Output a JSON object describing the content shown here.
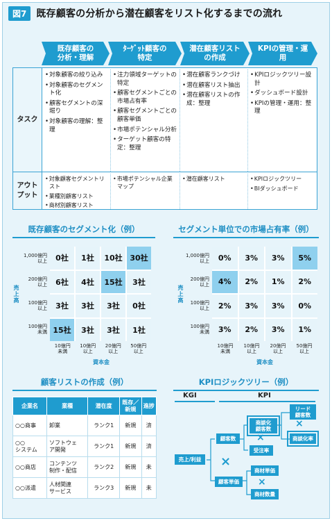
{
  "figure": {
    "badge": "図7",
    "title": "既存顧客の分析から潜在顧客をリスト化するまでの流れ"
  },
  "process": {
    "steps": [
      "既存顧客の\n分析・理解",
      "ﾀｰｹﾞｯﾄ顧客の\n特定",
      "潜在顧客リスト\nの作成",
      "KPIの管理・運用"
    ],
    "row_task": "タスク",
    "row_output": "アウト\nプット",
    "tasks": [
      [
        "対象顧客の絞り込み",
        "対象顧客のセグメント化",
        "顧客セグメントの深堀り",
        "対象顧客の理解：整理"
      ],
      [
        "注力領域ターゲットの特定",
        "顧客セグメントごとの市場占有率",
        "顧客セグメントごとの顧客単価",
        "市場ポテンシャル分析",
        "ターゲット顧客の特定：整理"
      ],
      [
        "潜在顧客ランクづけ",
        "潜在顧客リスト抽出",
        "潜在顧客リストの作成：整理"
      ],
      [
        "KPIロジックツリー設計",
        "ダッシュボード設計",
        "KPIの管理・運用：整理"
      ]
    ],
    "outputs": [
      [
        "対象顧客セグメントリスト",
        "業種別顧客リスト",
        "商材別顧客リスト"
      ],
      [
        "市場ポテンシャル企業マップ"
      ],
      [
        "潜在顧客リスト"
      ],
      [
        "KPIロジックツリー",
        "BIダッシュボード"
      ]
    ]
  },
  "segment_chart": {
    "title": "既存顧客のセグメント化（例）",
    "y_title": "売上高",
    "x_title": "資本金",
    "y_labels": [
      "1,000億円\n以上",
      "200億円\n以上",
      "100億円\n以上",
      "100億円\n未満"
    ],
    "x_labels": [
      "10億円\n未満",
      "10億円\n以上",
      "20億円\n以上",
      "50億円\n以上"
    ],
    "cells": [
      [
        "0社",
        "1社",
        "10社",
        "30社"
      ],
      [
        "6社",
        "4社",
        "15社",
        "3社"
      ],
      [
        "3社",
        "3社",
        "3社",
        "0社"
      ],
      [
        "15社",
        "3社",
        "3社",
        "1社"
      ]
    ],
    "highlight": [
      [
        0,
        3
      ],
      [
        1,
        2
      ],
      [
        3,
        0
      ]
    ]
  },
  "share_chart": {
    "title": "セグメント単位での市場占有率（例）",
    "y_title": "売上高",
    "x_title": "資本金",
    "y_labels": [
      "1,000億円\n以上",
      "200億円\n以上",
      "100億円\n以上",
      "100億円\n未満"
    ],
    "x_labels": [
      "10億円\n未満",
      "10億円\n以上",
      "20億円\n以上",
      "50億円\n以上"
    ],
    "cells": [
      [
        "0%",
        "3%",
        "3%",
        "5%"
      ],
      [
        "4%",
        "2%",
        "1%",
        "2%"
      ],
      [
        "2%",
        "3%",
        "3%",
        "0%"
      ],
      [
        "3%",
        "2%",
        "3%",
        "1%"
      ]
    ],
    "highlight": [
      [
        0,
        3
      ],
      [
        1,
        0
      ]
    ]
  },
  "customer_list": {
    "title": "顧客リストの作成（例）",
    "headers": [
      "企業名",
      "業種",
      "潜在度",
      "既存／\n新規",
      "進捗"
    ],
    "rows": [
      [
        "○○商事",
        "卸業",
        "ランク1",
        "新規",
        "済"
      ],
      [
        "○○\nシステム",
        "ソフトウェ\nア開発",
        "ランク1",
        "新規",
        "済"
      ],
      [
        "○○商店",
        "コンテンツ\n制作・配信",
        "ランク2",
        "新規",
        "未"
      ],
      [
        "○○派遣",
        "人材関連\nサービス",
        "ランク3",
        "新規",
        "未"
      ]
    ]
  },
  "kpi_tree": {
    "title": "KPIロジックツリー（例）",
    "kgi_label": "KGI",
    "kpi_label": "KPI",
    "root": "売上/利益",
    "customers": "顧客数",
    "unit_price": "顧客単価",
    "product_customers": "商談化\n顧客数",
    "orders": "受注率",
    "lead_customers": "リード\n顧客数",
    "conversion": "商談化率",
    "product_price": "商材単価",
    "product_qty": "商材数量",
    "times_symbol": "×"
  },
  "colors": {
    "accent": "#1f9ccf",
    "panel_bg": "#e7f4fa",
    "cell_light": "#e6f4fa",
    "cell_highlight": "#8fd0ee"
  }
}
